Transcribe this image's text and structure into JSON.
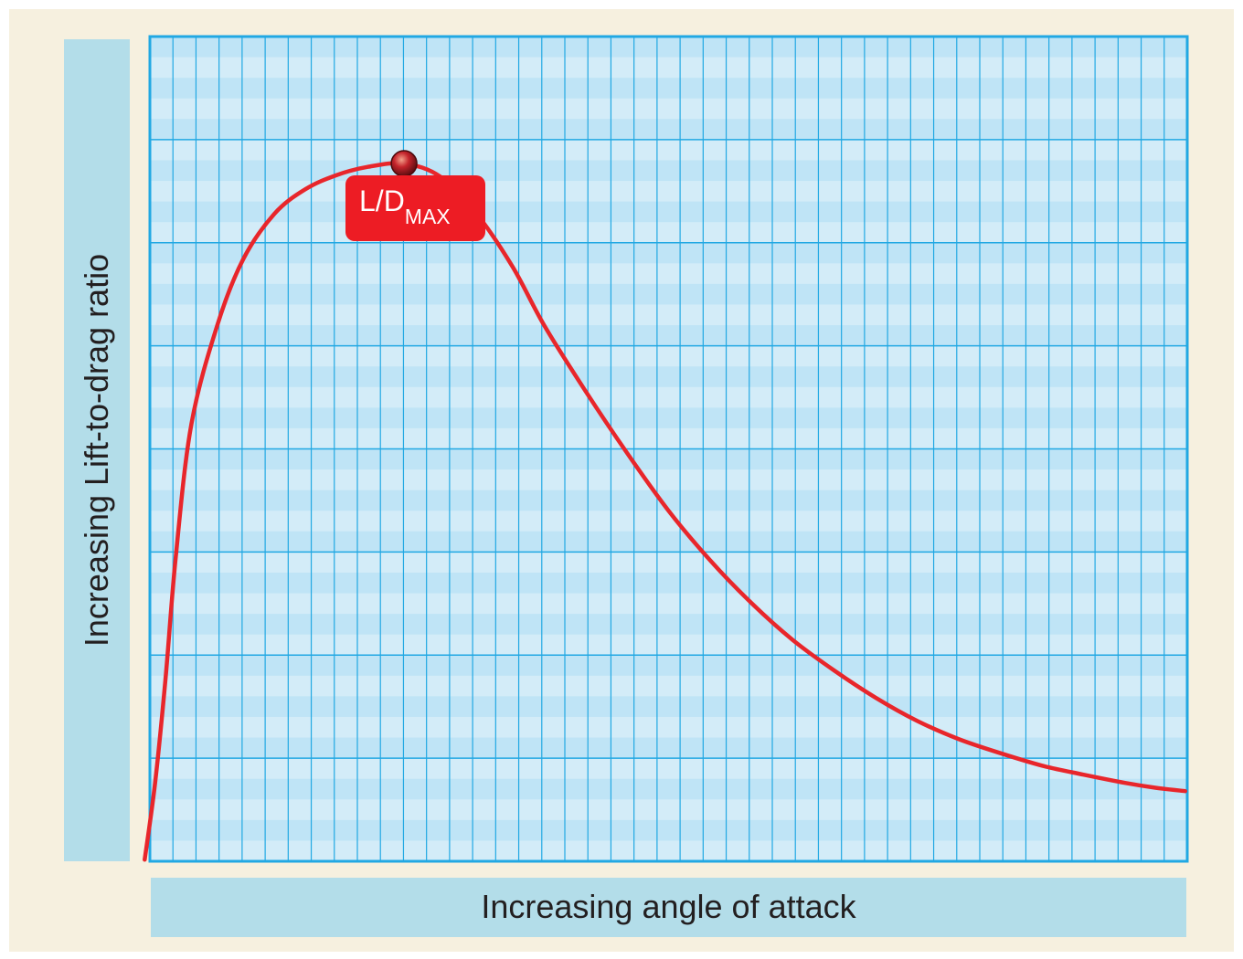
{
  "chart_data": {
    "type": "line",
    "xlabel": "Increasing angle of attack",
    "ylabel": "Increasing Lift-to-drag ratio",
    "xlim": [
      0,
      100
    ],
    "ylim": [
      0,
      100
    ],
    "grid": true,
    "series": [
      {
        "color": "#e8262b",
        "x": [
          -0.5,
          0.5,
          1.5,
          2.5,
          4.0,
          6.5,
          9.0,
          12.0,
          15.0,
          18.0,
          21.0,
          24.5,
          28.0,
          31.5,
          35.0,
          38.0,
          42.0,
          46.0,
          50.0,
          54.0,
          58.0,
          62.0,
          66.0,
          70.0,
          74.0,
          78.0,
          82.0,
          86.0,
          90.0,
          94.0,
          97.0,
          99.8
        ],
        "y": [
          0.2,
          9.5,
          22.0,
          37.0,
          53.0,
          65.0,
          73.0,
          78.5,
          81.5,
          83.2,
          84.2,
          84.6,
          83.0,
          78.5,
          72.0,
          65.0,
          57.0,
          49.5,
          42.5,
          36.5,
          31.3,
          26.8,
          23.1,
          19.8,
          17.0,
          14.8,
          13.1,
          11.6,
          10.5,
          9.5,
          8.9,
          8.5
        ]
      }
    ],
    "annotations": [
      {
        "label": "L/D",
        "subscript": "MAX",
        "x": 24.5,
        "y": 84.6
      }
    ],
    "colors": {
      "background": "#f6f0df",
      "grid_fill": "#d3ecf8",
      "grid_band": "#bfe4f6",
      "grid_line": "#21a8e3",
      "label_band": "#b3dde9",
      "curve": "#e8262b",
      "callout": "#ed1c24",
      "marker": "#c4232b"
    }
  }
}
